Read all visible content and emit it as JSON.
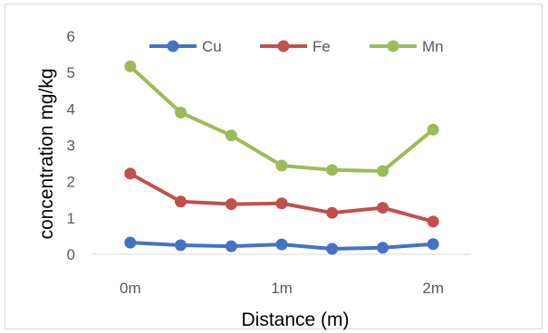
{
  "chart_data": {
    "type": "line",
    "title": "",
    "xlabel": "Distance (m)",
    "ylabel": "concentration mg/kg",
    "x": [
      0,
      0.333,
      0.667,
      1,
      1.333,
      1.667,
      2
    ],
    "xticks": [
      0,
      1,
      2
    ],
    "xtick_labels": [
      "0m",
      "1m",
      "2m"
    ],
    "xlim": [
      -0.25,
      2.25
    ],
    "ylim": [
      0,
      6
    ],
    "yticks": [
      0,
      1,
      2,
      3,
      4,
      5,
      6
    ],
    "grid": false,
    "legend_position": "top",
    "series": [
      {
        "name": "Cu",
        "color": "#4472c4",
        "values": [
          0.32,
          0.25,
          0.22,
          0.27,
          0.15,
          0.18,
          0.28
        ]
      },
      {
        "name": "Fe",
        "color": "#c0504d",
        "values": [
          2.22,
          1.45,
          1.38,
          1.4,
          1.14,
          1.28,
          0.9
        ]
      },
      {
        "name": "Mn",
        "color": "#9bbb59",
        "values": [
          5.17,
          3.9,
          3.27,
          2.44,
          2.32,
          2.29,
          3.43
        ]
      }
    ]
  }
}
